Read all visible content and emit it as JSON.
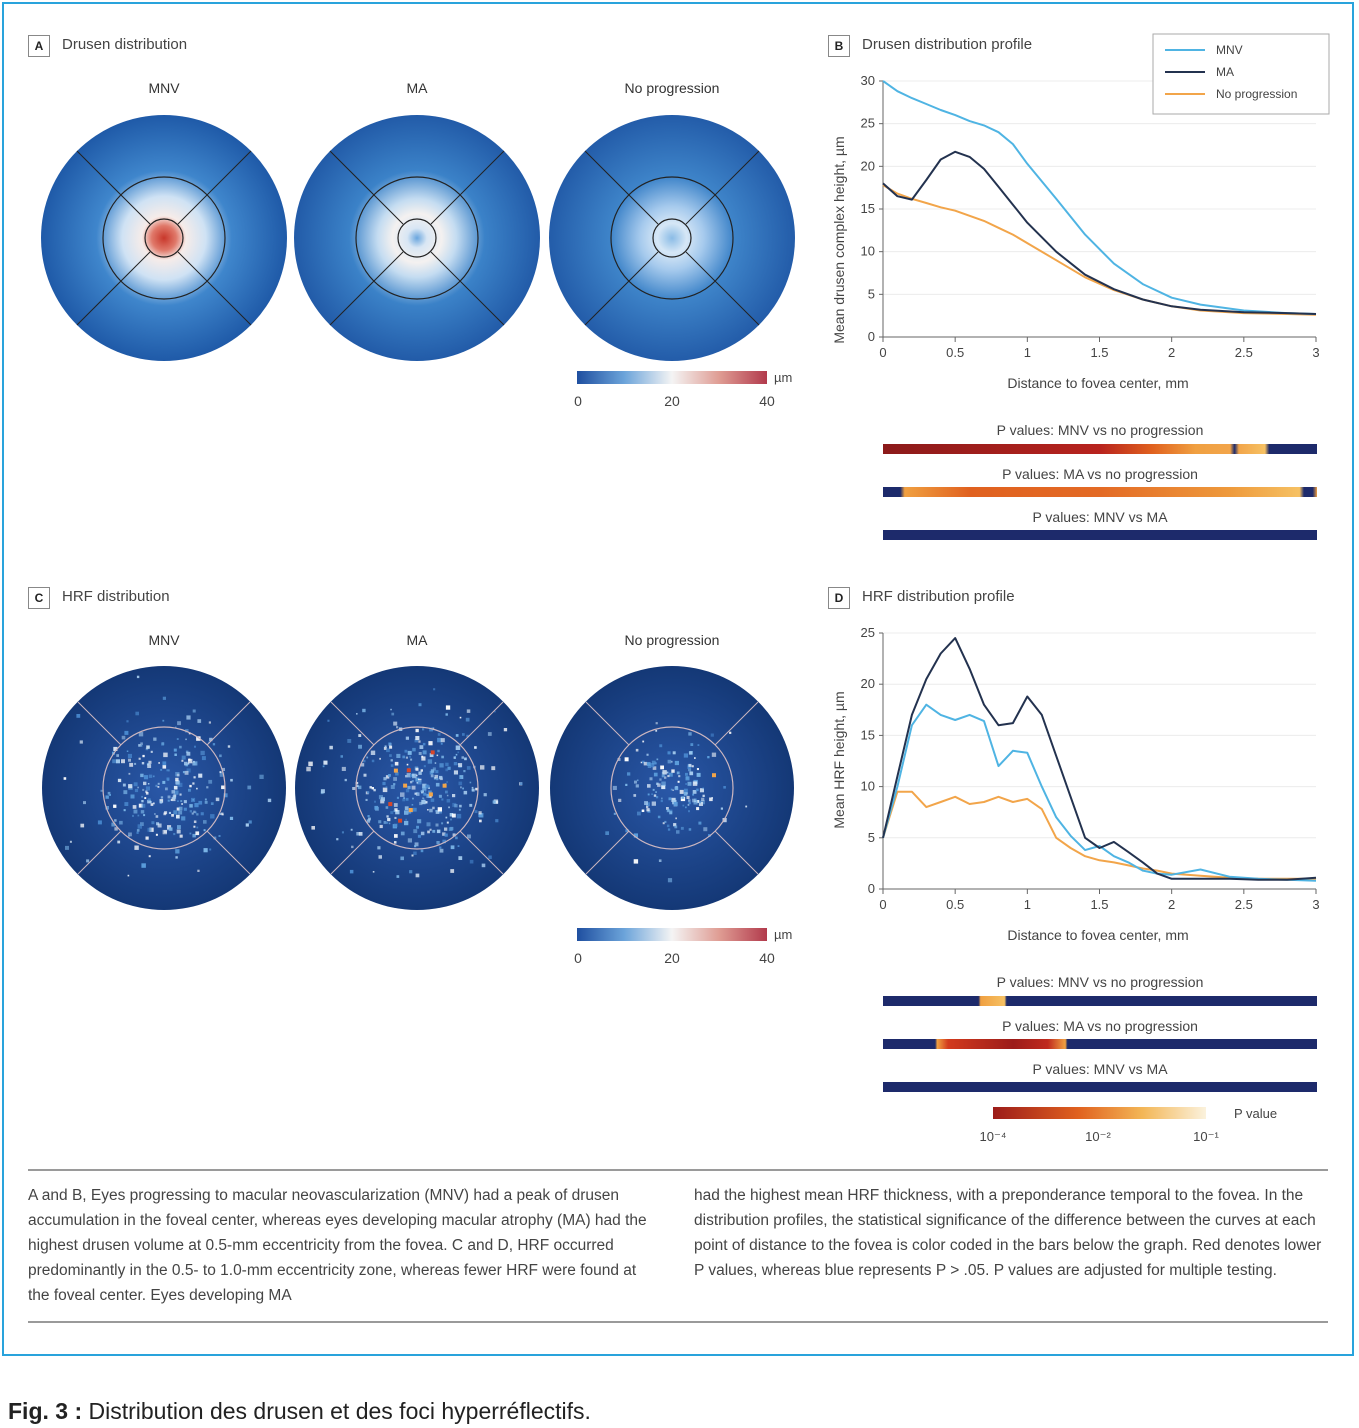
{
  "panels": {
    "a": {
      "letter": "A",
      "title": "Drusen distribution"
    },
    "b": {
      "letter": "B",
      "title": "Drusen distribution profile"
    },
    "c": {
      "letter": "C",
      "title": "HRF distribution"
    },
    "d": {
      "letter": "D",
      "title": "HRF distribution profile"
    }
  },
  "groups": [
    "MNV",
    "MA",
    "No progression"
  ],
  "colorbar": {
    "unit": "µm",
    "ticks": [
      "0",
      "20",
      "40"
    ]
  },
  "pvalue_bars": {
    "labels": [
      "P values: MNV vs no progression",
      "P values: MA vs no progression",
      "P values: MNV vs MA"
    ]
  },
  "pvalue_scale": {
    "title": "P value",
    "ticks": [
      "10⁻⁴",
      "10⁻²",
      "10⁻¹"
    ]
  },
  "colors": {
    "mnv": "#4fb4e3",
    "ma": "#23324f",
    "no_progression": "#f2a54a",
    "frame": "#29a3dc",
    "bar_navy": "#1d2a6b"
  },
  "chart_data": [
    {
      "type": "line",
      "panel": "B",
      "title": "Drusen distribution profile",
      "xlabel": "Distance to fovea center, mm",
      "ylabel": "Mean drusen complex height, µm",
      "xlim": [
        0,
        3
      ],
      "ylim": [
        0,
        30
      ],
      "xticks": [
        "0",
        "0.5",
        "1",
        "1.5",
        "2",
        "2.5",
        "3"
      ],
      "yticks": [
        "0",
        "5",
        "10",
        "15",
        "20",
        "25",
        "30"
      ],
      "legend_position": "top-right",
      "x": [
        0,
        0.1,
        0.2,
        0.3,
        0.4,
        0.5,
        0.6,
        0.7,
        0.8,
        0.9,
        1.0,
        1.2,
        1.4,
        1.6,
        1.8,
        2.0,
        2.2,
        2.5,
        2.8,
        3.0
      ],
      "series": [
        {
          "name": "MNV",
          "values": [
            30,
            28.8,
            28,
            27.3,
            26.6,
            26,
            25.3,
            24.8,
            24,
            22.6,
            20.3,
            16.2,
            12,
            8.6,
            6.2,
            4.6,
            3.8,
            3.1,
            2.8,
            2.7
          ]
        },
        {
          "name": "MA",
          "values": [
            18,
            16.5,
            16.1,
            18.4,
            20.8,
            21.7,
            21.1,
            19.7,
            17.6,
            15.5,
            13.4,
            10,
            7.3,
            5.6,
            4.4,
            3.6,
            3.2,
            2.9,
            2.8,
            2.7
          ]
        },
        {
          "name": "No progression",
          "values": [
            17.8,
            16.8,
            16.2,
            15.7,
            15.2,
            14.8,
            14.2,
            13.6,
            12.8,
            12,
            11,
            9,
            7,
            5.5,
            4.4,
            3.6,
            3.1,
            2.8,
            2.7,
            2.6
          ]
        }
      ]
    },
    {
      "type": "line",
      "panel": "D",
      "title": "HRF distribution profile",
      "xlabel": "Distance to fovea center, mm",
      "ylabel": "Mean HRF height, µm",
      "xlim": [
        0,
        3
      ],
      "ylim": [
        0,
        25
      ],
      "xticks": [
        "0",
        "0.5",
        "1",
        "1.5",
        "2",
        "2.5",
        "3"
      ],
      "yticks": [
        "0",
        "5",
        "10",
        "15",
        "20",
        "25"
      ],
      "x": [
        0,
        0.1,
        0.2,
        0.3,
        0.4,
        0.5,
        0.6,
        0.7,
        0.8,
        0.9,
        1.0,
        1.1,
        1.2,
        1.3,
        1.4,
        1.5,
        1.6,
        1.7,
        1.8,
        1.9,
        2.0,
        2.2,
        2.4,
        2.6,
        2.8,
        3.0
      ],
      "series": [
        {
          "name": "MNV",
          "values": [
            5,
            10,
            16,
            18,
            17,
            16.5,
            17,
            16.4,
            12,
            13.5,
            13.3,
            10,
            7,
            5.2,
            3.8,
            4.2,
            3.2,
            2.6,
            1.8,
            1.5,
            1.4,
            1.9,
            1.2,
            1.0,
            0.9,
            0.8
          ]
        },
        {
          "name": "MA",
          "values": [
            5,
            11,
            17,
            20.5,
            23,
            24.5,
            21.5,
            18,
            16,
            16.2,
            18.8,
            17,
            13,
            9,
            5,
            4,
            4.6,
            3.6,
            2.6,
            1.5,
            1.0,
            1.0,
            1.0,
            0.9,
            0.9,
            1.1
          ]
        },
        {
          "name": "No progression",
          "values": [
            5,
            9.5,
            9.5,
            8,
            8.5,
            9,
            8.3,
            8.5,
            9,
            8.5,
            8.8,
            7.8,
            5,
            4,
            3.2,
            2.8,
            2.6,
            2.3,
            2.0,
            1.8,
            1.5,
            1.3,
            1.1,
            1.0,
            1.0,
            1.0
          ]
        }
      ]
    }
  ],
  "caption": {
    "left": "A and B, Eyes progressing to macular neovascularization (MNV) had a peak of drusen accumulation in the foveal center, whereas eyes developing macular atrophy (MA) had the highest drusen volume at 0.5-mm eccentricity from the fovea. C and D, HRF occurred predominantly in the 0.5- to 1.0-mm eccentricity zone, whereas fewer HRF were found at the foveal center. Eyes developing MA",
    "right": "had the highest mean HRF thickness, with a preponderance temporal to the fovea. In the distribution profiles, the statistical significance of the difference between the curves at each point of distance to the fovea is color coded in the bars below the graph. Red denotes lower P values, whereas blue represents P > .05. P values are adjusted for multiple testing."
  },
  "figure_caption": {
    "label": "Fig. 3 :",
    "text": " Distribution des drusen et des foci hyperréflectifs."
  }
}
